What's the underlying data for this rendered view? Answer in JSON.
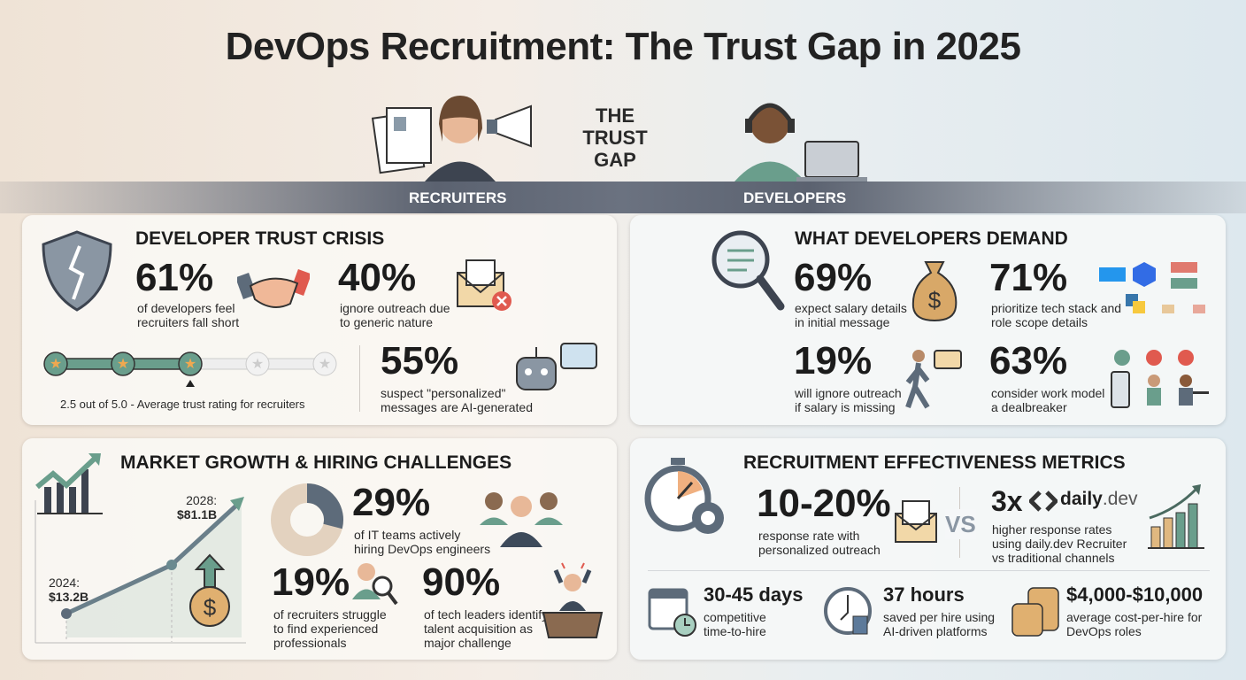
{
  "title": "DevOps Recruitment: The Trust Gap in 2025",
  "center_label": [
    "THE",
    "TRUST",
    "GAP"
  ],
  "sides": {
    "left": "RECRUITERS",
    "right": "DEVELOPERS"
  },
  "colors": {
    "teal": "#6a9e8c",
    "slate": "#5d6b7a",
    "tan": "#d8b48a",
    "red": "#e05a4f"
  },
  "trust_crisis": {
    "heading": "DEVELOPER TRUST CRISIS",
    "stats": [
      {
        "value": "61%",
        "desc": [
          "of developers feel",
          "recruiters fall short"
        ],
        "icon": "handshake-icon"
      },
      {
        "value": "40%",
        "desc": [
          "ignore outreach due",
          "to generic nature"
        ],
        "icon": "rejected-envelope-icon"
      },
      {
        "value": "55%",
        "desc": [
          "suspect \"personalized\"",
          "messages are AI-generated"
        ],
        "icon": "robot-chat-icon"
      }
    ],
    "rating": {
      "value": 2.5,
      "max": 5.0,
      "label": "2.5 out of 5.0 - Average trust rating for recruiters"
    }
  },
  "demands": {
    "heading": "WHAT DEVELOPERS DEMAND",
    "stats": [
      {
        "value": "69%",
        "desc": [
          "expect salary details",
          "in initial message"
        ],
        "icon": "money-bag-icon"
      },
      {
        "value": "71%",
        "desc": [
          "prioritize tech stack and",
          "role scope details"
        ],
        "icon": "tech-stack-icon"
      },
      {
        "value": "19%",
        "desc": [
          "will ignore outreach",
          "if salary is missing"
        ],
        "icon": "walking-away-icon"
      },
      {
        "value": "63%",
        "desc": [
          "consider work model",
          "a dealbreaker"
        ],
        "icon": "work-model-icon"
      }
    ]
  },
  "market": {
    "heading": "MARKET GROWTH & HIRING CHALLENGES",
    "growth": {
      "points": [
        {
          "label": "2024:",
          "value": "$13.2B"
        },
        {
          "label": "2028:",
          "value": "$81.1B"
        }
      ]
    },
    "stats": [
      {
        "value": "29%",
        "desc": [
          "of IT teams actively",
          "hiring DevOps engineers"
        ],
        "fraction": 0.29
      },
      {
        "value": "19%",
        "desc": [
          "of recruiters struggle",
          "to find experienced",
          "professionals"
        ]
      },
      {
        "value": "90%",
        "desc": [
          "of tech leaders identify",
          "talent acquisition as",
          "major challenge"
        ]
      }
    ]
  },
  "metrics": {
    "heading": "RECRUITMENT EFFECTIVENESS METRICS",
    "left": {
      "value": "10-20%",
      "desc": [
        "response rate with",
        "personalized outreach"
      ]
    },
    "vs": "VS",
    "right": {
      "value": "3x",
      "brand": "daily",
      "brand_suffix": ".dev",
      "desc": [
        "higher response rates",
        "using daily.dev Recruiter",
        "vs traditional channels"
      ]
    },
    "bottom": [
      {
        "value": "30-45 days",
        "desc": [
          "competitive",
          "time-to-hire"
        ]
      },
      {
        "value": "37 hours",
        "desc": [
          "saved per hire using",
          "AI-driven platforms"
        ]
      },
      {
        "value": "$4,000-$10,000",
        "desc": [
          "average cost-per-hire for",
          "DevOps roles"
        ]
      }
    ]
  }
}
